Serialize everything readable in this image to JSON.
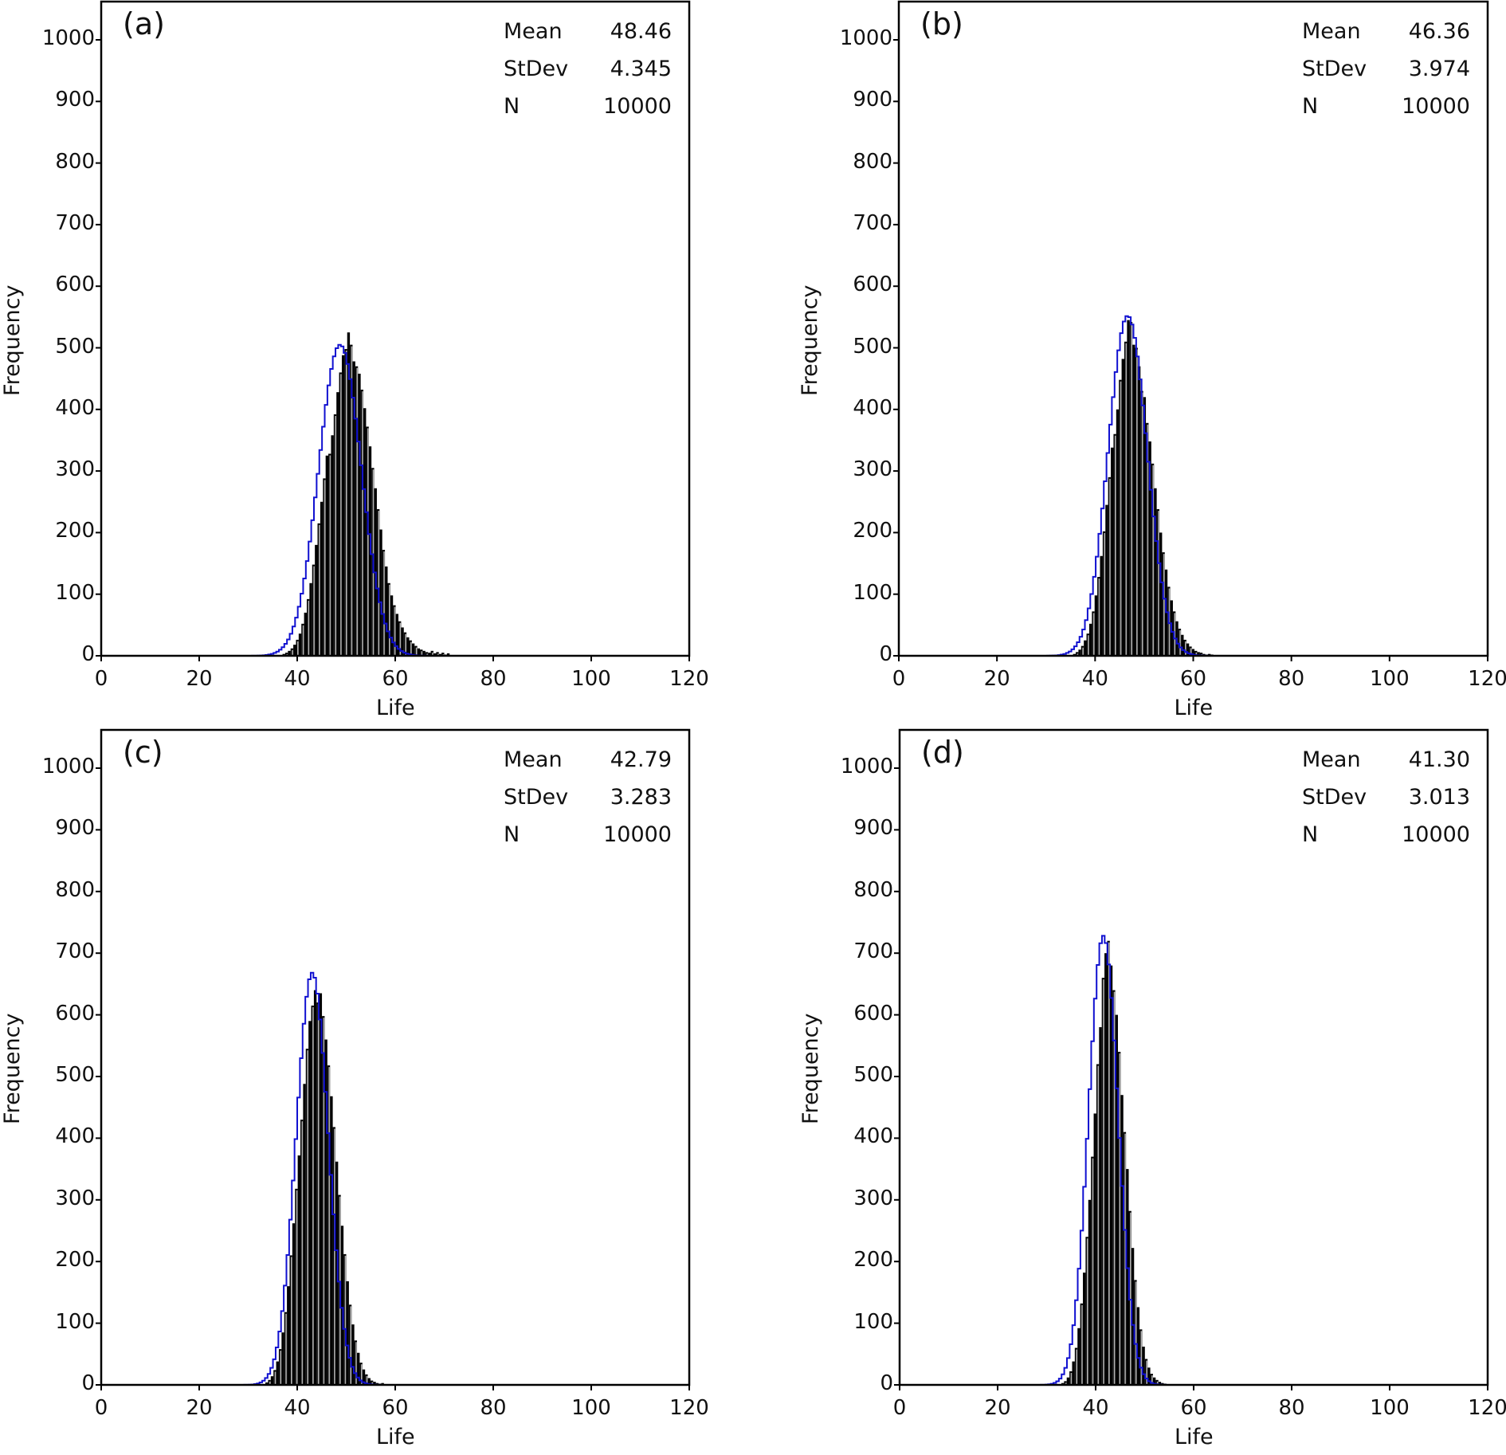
{
  "figure": {
    "panels": [
      {
        "label": "(a)",
        "stats": {
          "Mean": "48.46",
          "StDev": "4.345",
          "N": "10000"
        }
      },
      {
        "label": "(b)",
        "stats": {
          "Mean": "46.36",
          "StDev": "3.974",
          "N": "10000"
        }
      },
      {
        "label": "(c)",
        "stats": {
          "Mean": "42.79",
          "StDev": "3.283",
          "N": "10000"
        }
      },
      {
        "label": "(d)",
        "stats": {
          "Mean": "41.30",
          "StDev": "3.013",
          "N": "10000"
        }
      }
    ],
    "stat_labels": [
      "Mean",
      "StDev",
      "N"
    ],
    "xlabel": "Life",
    "ylabel": "Frequency",
    "x_ticks": [
      "0",
      "20",
      "40",
      "60",
      "80",
      "100",
      "120"
    ],
    "y_ticks": [
      "0",
      "100",
      "200",
      "300",
      "400",
      "500",
      "600",
      "700",
      "800",
      "900",
      "1000"
    ],
    "colors": {
      "bars": "#000000",
      "bar_gap": "#b0b0b0",
      "fit_curve": "#1010d0",
      "axes": "#000000"
    }
  },
  "chart_data": [
    {
      "type": "bar",
      "title": "(a)",
      "xlabel": "Life",
      "ylabel": "Frequency",
      "xlim": [
        0,
        120
      ],
      "ylim": [
        0,
        1050
      ],
      "grid": false,
      "stats": {
        "mean": 48.46,
        "stdev": 4.345,
        "n": 10000
      },
      "bin_start": 37.0,
      "bin_width": 0.55,
      "values": [
        3,
        5,
        8,
        12,
        18,
        26,
        36,
        52,
        70,
        92,
        118,
        148,
        180,
        215,
        250,
        288,
        325,
        328,
        358,
        392,
        428,
        460,
        488,
        498,
        525,
        505,
        478,
        470,
        458,
        432,
        402,
        372,
        340,
        305,
        272,
        238,
        205,
        172,
        145,
        118,
        98,
        82,
        68,
        56,
        46,
        38,
        30,
        25,
        20,
        16,
        12,
        10,
        8,
        6,
        5,
        8,
        4,
        6,
        3,
        5,
        2,
        4
      ]
    },
    {
      "type": "bar",
      "title": "(b)",
      "xlabel": "Life",
      "ylabel": "Frequency",
      "xlim": [
        0,
        120
      ],
      "ylim": [
        0,
        1050
      ],
      "grid": false,
      "stats": {
        "mean": 46.36,
        "stdev": 3.974,
        "n": 10000
      },
      "bin_start": 35.5,
      "bin_width": 0.55,
      "values": [
        3,
        6,
        10,
        16,
        25,
        36,
        52,
        72,
        98,
        128,
        162,
        202,
        245,
        290,
        338,
        360,
        400,
        448,
        482,
        510,
        545,
        542,
        505,
        500,
        470,
        430,
        420,
        378,
        348,
        312,
        272,
        238,
        200,
        168,
        140,
        112,
        90,
        72,
        56,
        44,
        34,
        26,
        20,
        15,
        11,
        8,
        6,
        5,
        3,
        2,
        3,
        2
      ]
    },
    {
      "type": "bar",
      "title": "(c)",
      "xlabel": "Life",
      "ylabel": "Frequency",
      "xlim": [
        0,
        120
      ],
      "ylim": [
        0,
        1050
      ],
      "grid": false,
      "stats": {
        "mean": 42.79,
        "stdev": 3.283,
        "n": 10000
      },
      "bin_start": 33.5,
      "bin_width": 0.55,
      "values": [
        4,
        8,
        14,
        24,
        38,
        58,
        85,
        118,
        160,
        210,
        262,
        318,
        372,
        430,
        488,
        545,
        590,
        615,
        640,
        620,
        635,
        598,
        560,
        518,
        468,
        418,
        362,
        308,
        258,
        212,
        168,
        130,
        98,
        72,
        52,
        36,
        25,
        17,
        11,
        7,
        5,
        3,
        2,
        3,
        1
      ]
    },
    {
      "type": "bar",
      "title": "(d)",
      "xlabel": "Life",
      "ylabel": "Frequency",
      "xlim": [
        0,
        120
      ],
      "ylim": [
        0,
        1050
      ],
      "grid": false,
      "stats": {
        "mean": 41.3,
        "stdev": 3.013,
        "n": 10000
      },
      "bin_start": 33.0,
      "bin_width": 0.55,
      "values": [
        3,
        6,
        12,
        22,
        38,
        60,
        92,
        132,
        182,
        240,
        300,
        370,
        440,
        520,
        580,
        660,
        700,
        720,
        680,
        640,
        600,
        540,
        470,
        410,
        350,
        282,
        222,
        170,
        126,
        90,
        62,
        42,
        28,
        18,
        12,
        8,
        5,
        3,
        2,
        1
      ]
    }
  ]
}
